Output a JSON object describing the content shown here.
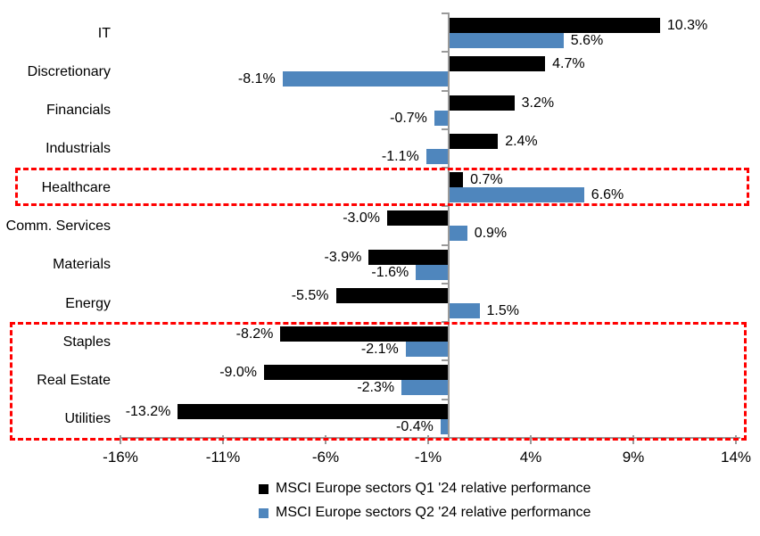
{
  "chart_data": {
    "type": "bar",
    "orientation": "horizontal",
    "title": "",
    "categories": [
      "IT",
      "Discretionary",
      "Financials",
      "Industrials",
      "Healthcare",
      "Comm. Services",
      "Materials",
      "Energy",
      "Staples",
      "Real Estate",
      "Utilities"
    ],
    "series": [
      {
        "name": "MSCI Europe sectors Q1 '24 relative performance",
        "color": "#000000",
        "values": [
          10.3,
          4.7,
          3.2,
          2.4,
          0.7,
          -3.0,
          -3.9,
          -5.5,
          -8.2,
          -9.0,
          -13.2
        ],
        "labels": [
          "10.3%",
          "4.7%",
          "3.2%",
          "2.4%",
          "0.7%",
          "-3.0%",
          "-3.9%",
          "-5.5%",
          "-8.2%",
          "-9.0%",
          "-13.2%"
        ]
      },
      {
        "name": "MSCI Europe sectors Q2 '24 relative performance",
        "color": "#4f86bd",
        "values": [
          5.6,
          -8.1,
          -0.7,
          -1.1,
          6.6,
          0.9,
          -1.6,
          1.5,
          -2.1,
          -2.3,
          -0.4
        ],
        "labels": [
          "5.6%",
          "-8.1%",
          "-0.7%",
          "-1.1%",
          "6.6%",
          "0.9%",
          "-1.6%",
          "1.5%",
          "-2.1%",
          "-2.3%",
          "-0.4%"
        ]
      }
    ],
    "x_axis": {
      "min": -16,
      "max": 14,
      "tick_values": [
        -16,
        -11,
        -6,
        -1,
        4,
        9,
        14
      ],
      "tick_labels": [
        "-16%",
        "-11%",
        "-6%",
        "-1%",
        "4%",
        "9%",
        "14%"
      ]
    },
    "grid": false,
    "legend_position": "bottom",
    "highlights": [
      {
        "from_category": "Healthcare",
        "to_category": "Healthcare",
        "color": "#ff0000"
      },
      {
        "from_category": "Staples",
        "to_category": "Utilities",
        "color": "#ff0000"
      }
    ]
  },
  "legend": {
    "items": [
      {
        "label": "MSCI Europe sectors Q1 '24 relative performance",
        "color": "#000000"
      },
      {
        "label": "MSCI Europe sectors Q2 '24 relative performance",
        "color": "#4f86bd"
      }
    ]
  }
}
